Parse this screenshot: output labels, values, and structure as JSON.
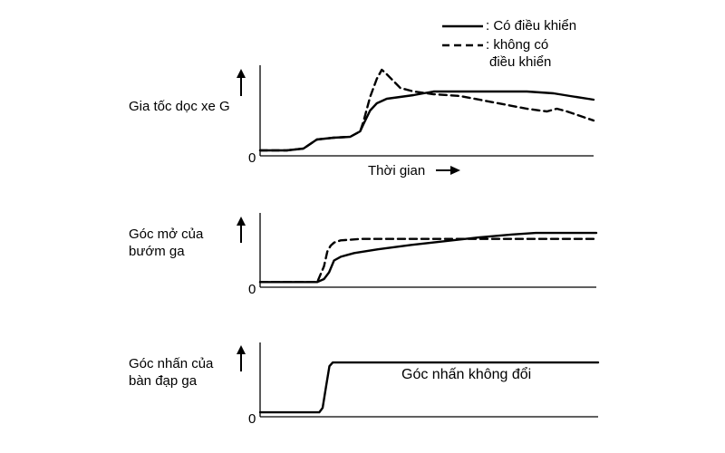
{
  "legend": {
    "position": "top-right",
    "entries": [
      {
        "style": "solid",
        "label": ": Có điều khiển"
      },
      {
        "style": "dashed",
        "label_line1": ": không có",
        "label_line2": "điều khiển"
      }
    ]
  },
  "colors": {
    "line": "#000000",
    "background": "#ffffff"
  },
  "chart_data": [
    {
      "type": "line",
      "ylabel": "Gia tốc dọc xe G",
      "xlabel": "Thời gian",
      "zero_label": "0",
      "x_range": [
        0,
        100
      ],
      "y_range": [
        0,
        100
      ],
      "series": [
        {
          "style": "solid",
          "x": [
            0,
            8,
            13,
            17,
            22,
            27,
            30,
            31,
            33,
            35,
            38,
            42,
            46,
            52,
            60,
            70,
            80,
            88,
            93,
            100
          ],
          "y": [
            6,
            6,
            8,
            18,
            20,
            21,
            27,
            35,
            50,
            58,
            63,
            65,
            67,
            71,
            71,
            71,
            71,
            69,
            66,
            62
          ]
        },
        {
          "style": "dashed",
          "x": [
            0,
            8,
            13,
            17,
            22,
            27,
            30,
            31,
            33,
            35,
            36.5,
            38,
            42,
            46,
            52,
            60,
            70,
            80,
            86,
            89,
            92,
            96,
            100
          ],
          "y": [
            6,
            6,
            8,
            18,
            20,
            21,
            27,
            38,
            65,
            85,
            95,
            90,
            75,
            71,
            68,
            66,
            59,
            52,
            49,
            52,
            49,
            44,
            39
          ]
        }
      ]
    },
    {
      "type": "line",
      "ylabel_line1": "Góc mở của",
      "ylabel_line2": "bướm ga",
      "zero_label": "0",
      "x_range": [
        0,
        100
      ],
      "y_range": [
        0,
        100
      ],
      "series": [
        {
          "style": "solid",
          "x": [
            0,
            17,
            19,
            20.5,
            22,
            24,
            28,
            35,
            45,
            55,
            65,
            75,
            82,
            100
          ],
          "y": [
            7,
            7,
            11,
            20,
            36,
            41,
            46,
            51,
            57,
            62,
            67,
            71,
            73,
            73
          ]
        },
        {
          "style": "dashed",
          "x": [
            0,
            17,
            19,
            20,
            21,
            22,
            24,
            30,
            50,
            70,
            100
          ],
          "y": [
            7,
            7,
            28,
            48,
            56,
            60,
            63,
            65,
            65,
            65,
            65
          ]
        }
      ]
    },
    {
      "type": "line",
      "ylabel_line1": "Góc nhấn của",
      "ylabel_line2": "bàn đạp ga",
      "zero_label": "0",
      "annotation": "Góc nhấn không đổi",
      "x_range": [
        0,
        100
      ],
      "y_range": [
        0,
        100
      ],
      "series": [
        {
          "style": "solid",
          "x": [
            0,
            17.5,
            18.5,
            19.5,
            20.5,
            21.5,
            100
          ],
          "y": [
            6,
            6,
            12,
            40,
            68,
            73,
            73
          ]
        }
      ]
    }
  ]
}
